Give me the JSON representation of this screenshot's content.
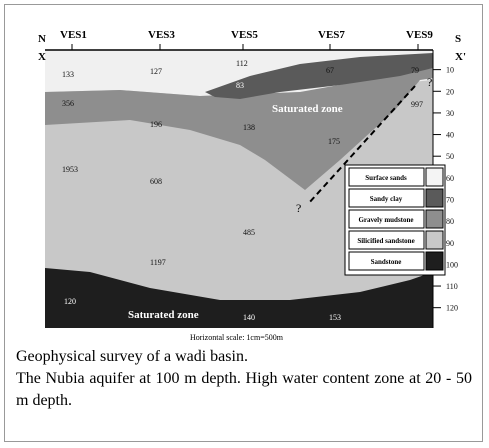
{
  "labels": {
    "north": "N",
    "south": "S",
    "x": "X",
    "x_prime": "X'",
    "saturated_upper": "Saturated zone",
    "saturated_lower": "Saturated zone",
    "question_1": "?",
    "question_2": "?",
    "scale": "Horizontal scale: 1cm=500m"
  },
  "ves": [
    "VES1",
    "VES3",
    "VES5",
    "VES7",
    "VES9"
  ],
  "resistivity": [
    "133",
    "127",
    "112",
    "67",
    "79",
    "83",
    "356",
    "196",
    "138",
    "175",
    "997",
    "1953",
    "608",
    "485",
    "1197",
    "120",
    "140",
    "153"
  ],
  "depth_ticks": [
    10,
    20,
    30,
    40,
    50,
    60,
    70,
    80,
    90,
    100,
    110,
    120
  ],
  "legend": [
    "Surface sands",
    "Sandy clay",
    "Gravely mudstone",
    "Silicified sandstone",
    "Sandstone"
  ],
  "caption": {
    "title": "Geophysical survey of a wadi basin.",
    "text": "The Nubia aquifer at 100 m depth. High water content zone at 20 - 50 m depth."
  }
}
